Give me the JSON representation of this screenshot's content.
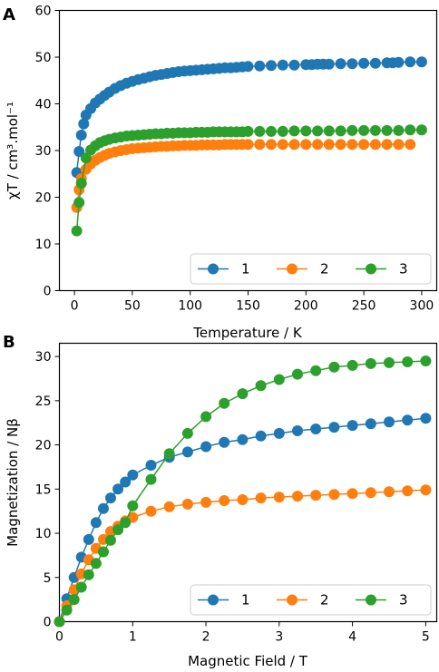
{
  "chart_data": [
    {
      "type": "line",
      "panel": "A",
      "xlabel": "Temperature / K",
      "ylabel": "χT / cm³.mol⁻¹",
      "xlim": [
        -13,
        313
      ],
      "ylim": [
        0,
        60
      ],
      "xticks": [
        0,
        50,
        100,
        150,
        200,
        250,
        300
      ],
      "yticks": [
        0,
        10,
        20,
        30,
        40,
        50,
        60
      ],
      "grid": false,
      "legend": "bottom-right, horizontal",
      "series": [
        {
          "name": "1",
          "color": "#1f77b4",
          "x": [
            2,
            4,
            6,
            8,
            10,
            14,
            18,
            22,
            26,
            30,
            35,
            40,
            45,
            50,
            55,
            60,
            65,
            70,
            75,
            80,
            85,
            90,
            95,
            100,
            105,
            110,
            115,
            120,
            125,
            130,
            135,
            140,
            145,
            150,
            160,
            170,
            180,
            190,
            200,
            205,
            210,
            215,
            220,
            230,
            240,
            250,
            260,
            270,
            275,
            280,
            290,
            300
          ],
          "y": [
            25.3,
            29.8,
            33.3,
            35.7,
            37.6,
            39.0,
            40.2,
            41.0,
            41.8,
            42.5,
            43.3,
            43.9,
            44.4,
            44.8,
            45.2,
            45.5,
            45.8,
            46.1,
            46.3,
            46.5,
            46.7,
            46.9,
            47.0,
            47.1,
            47.2,
            47.3,
            47.4,
            47.5,
            47.6,
            47.7,
            47.7,
            47.8,
            47.9,
            48.0,
            48.1,
            48.2,
            48.3,
            48.3,
            48.4,
            48.4,
            48.5,
            48.5,
            48.5,
            48.6,
            48.6,
            48.7,
            48.7,
            48.8,
            48.8,
            48.9,
            49.0,
            49.0
          ]
        },
        {
          "name": "2",
          "color": "#ff7f0e",
          "x": [
            2,
            4,
            6,
            10,
            14,
            18,
            22,
            26,
            30,
            35,
            40,
            45,
            50,
            55,
            60,
            65,
            70,
            75,
            80,
            85,
            90,
            95,
            100,
            105,
            110,
            115,
            120,
            125,
            130,
            135,
            140,
            145,
            150,
            160,
            170,
            180,
            190,
            200,
            210,
            220,
            230,
            240,
            250,
            260,
            270,
            280,
            290
          ],
          "y": [
            17.8,
            21.6,
            24.0,
            26.0,
            27.1,
            27.9,
            28.5,
            29.0,
            29.4,
            29.7,
            30.0,
            30.2,
            30.4,
            30.5,
            30.6,
            30.7,
            30.8,
            30.9,
            30.9,
            31.0,
            31.0,
            31.1,
            31.1,
            31.1,
            31.2,
            31.2,
            31.2,
            31.2,
            31.3,
            31.3,
            31.3,
            31.3,
            31.3,
            31.3,
            31.3,
            31.3,
            31.3,
            31.3,
            31.3,
            31.3,
            31.3,
            31.3,
            31.3,
            31.3,
            31.3,
            31.3,
            31.3
          ]
        },
        {
          "name": "3",
          "color": "#2ca02c",
          "x": [
            2,
            4,
            6,
            10,
            14,
            18,
            22,
            26,
            30,
            35,
            40,
            45,
            50,
            55,
            60,
            65,
            70,
            75,
            80,
            85,
            90,
            95,
            100,
            105,
            110,
            115,
            120,
            125,
            130,
            135,
            140,
            145,
            150,
            160,
            170,
            180,
            190,
            200,
            210,
            220,
            230,
            240,
            250,
            260,
            270,
            280,
            290,
            300
          ],
          "y": [
            12.8,
            18.9,
            23.0,
            28.4,
            30.1,
            31.0,
            31.7,
            32.1,
            32.4,
            32.7,
            32.9,
            33.1,
            33.2,
            33.3,
            33.4,
            33.5,
            33.6,
            33.6,
            33.7,
            33.7,
            33.8,
            33.8,
            33.8,
            33.9,
            33.9,
            33.9,
            34.0,
            34.0,
            34.0,
            34.0,
            34.0,
            34.0,
            34.1,
            34.1,
            34.1,
            34.1,
            34.2,
            34.2,
            34.2,
            34.2,
            34.2,
            34.3,
            34.3,
            34.3,
            34.3,
            34.3,
            34.4,
            34.4
          ]
        }
      ]
    },
    {
      "type": "line",
      "panel": "B",
      "xlabel": "Magnetic Field / T",
      "ylabel": "Magnetization / Nβ",
      "xlim": [
        0,
        5.15
      ],
      "ylim": [
        0,
        31.5
      ],
      "xticks": [
        0,
        1,
        2,
        3,
        4,
        5
      ],
      "yticks": [
        0,
        5,
        10,
        15,
        20,
        25,
        30
      ],
      "grid": false,
      "legend": "bottom-right, horizontal",
      "series": [
        {
          "name": "1",
          "color": "#1f77b4",
          "x": [
            0,
            0.1,
            0.2,
            0.3,
            0.4,
            0.5,
            0.6,
            0.7,
            0.8,
            0.9,
            1.0,
            1.25,
            1.5,
            1.75,
            2.0,
            2.25,
            2.5,
            2.75,
            3.0,
            3.25,
            3.5,
            3.75,
            4.0,
            4.25,
            4.5,
            4.75,
            5.0
          ],
          "y": [
            0,
            2.6,
            5.0,
            7.3,
            9.3,
            11.2,
            12.8,
            14.0,
            15.0,
            15.8,
            16.6,
            17.7,
            18.6,
            19.2,
            19.8,
            20.3,
            20.6,
            21.0,
            21.3,
            21.6,
            21.8,
            22.0,
            22.2,
            22.4,
            22.6,
            22.8,
            23.0
          ]
        },
        {
          "name": "2",
          "color": "#ff7f0e",
          "x": [
            0,
            0.1,
            0.2,
            0.3,
            0.4,
            0.5,
            0.6,
            0.7,
            0.8,
            0.9,
            1.0,
            1.25,
            1.5,
            1.75,
            2.0,
            2.25,
            2.5,
            2.75,
            3.0,
            3.25,
            3.5,
            3.75,
            4.0,
            4.25,
            4.5,
            4.75,
            5.0
          ],
          "y": [
            0,
            1.8,
            3.6,
            5.4,
            7.0,
            8.3,
            9.3,
            10.2,
            10.8,
            11.4,
            11.8,
            12.5,
            13.0,
            13.3,
            13.5,
            13.7,
            13.8,
            14.0,
            14.1,
            14.2,
            14.3,
            14.4,
            14.5,
            14.6,
            14.7,
            14.8,
            14.9
          ]
        },
        {
          "name": "3",
          "color": "#2ca02c",
          "x": [
            0,
            0.1,
            0.2,
            0.3,
            0.4,
            0.5,
            0.6,
            0.7,
            0.8,
            0.9,
            1.0,
            1.25,
            1.5,
            1.75,
            2.0,
            2.25,
            2.5,
            2.75,
            3.0,
            3.25,
            3.5,
            3.75,
            4.0,
            4.25,
            4.5,
            4.75,
            5.0
          ],
          "y": [
            0,
            1.3,
            2.5,
            3.9,
            5.3,
            6.6,
            7.9,
            9.2,
            10.4,
            11.2,
            13.1,
            16.1,
            19.0,
            21.3,
            23.2,
            24.7,
            25.8,
            26.7,
            27.4,
            28.0,
            28.4,
            28.8,
            29.0,
            29.2,
            29.3,
            29.4,
            29.5
          ]
        }
      ]
    }
  ]
}
